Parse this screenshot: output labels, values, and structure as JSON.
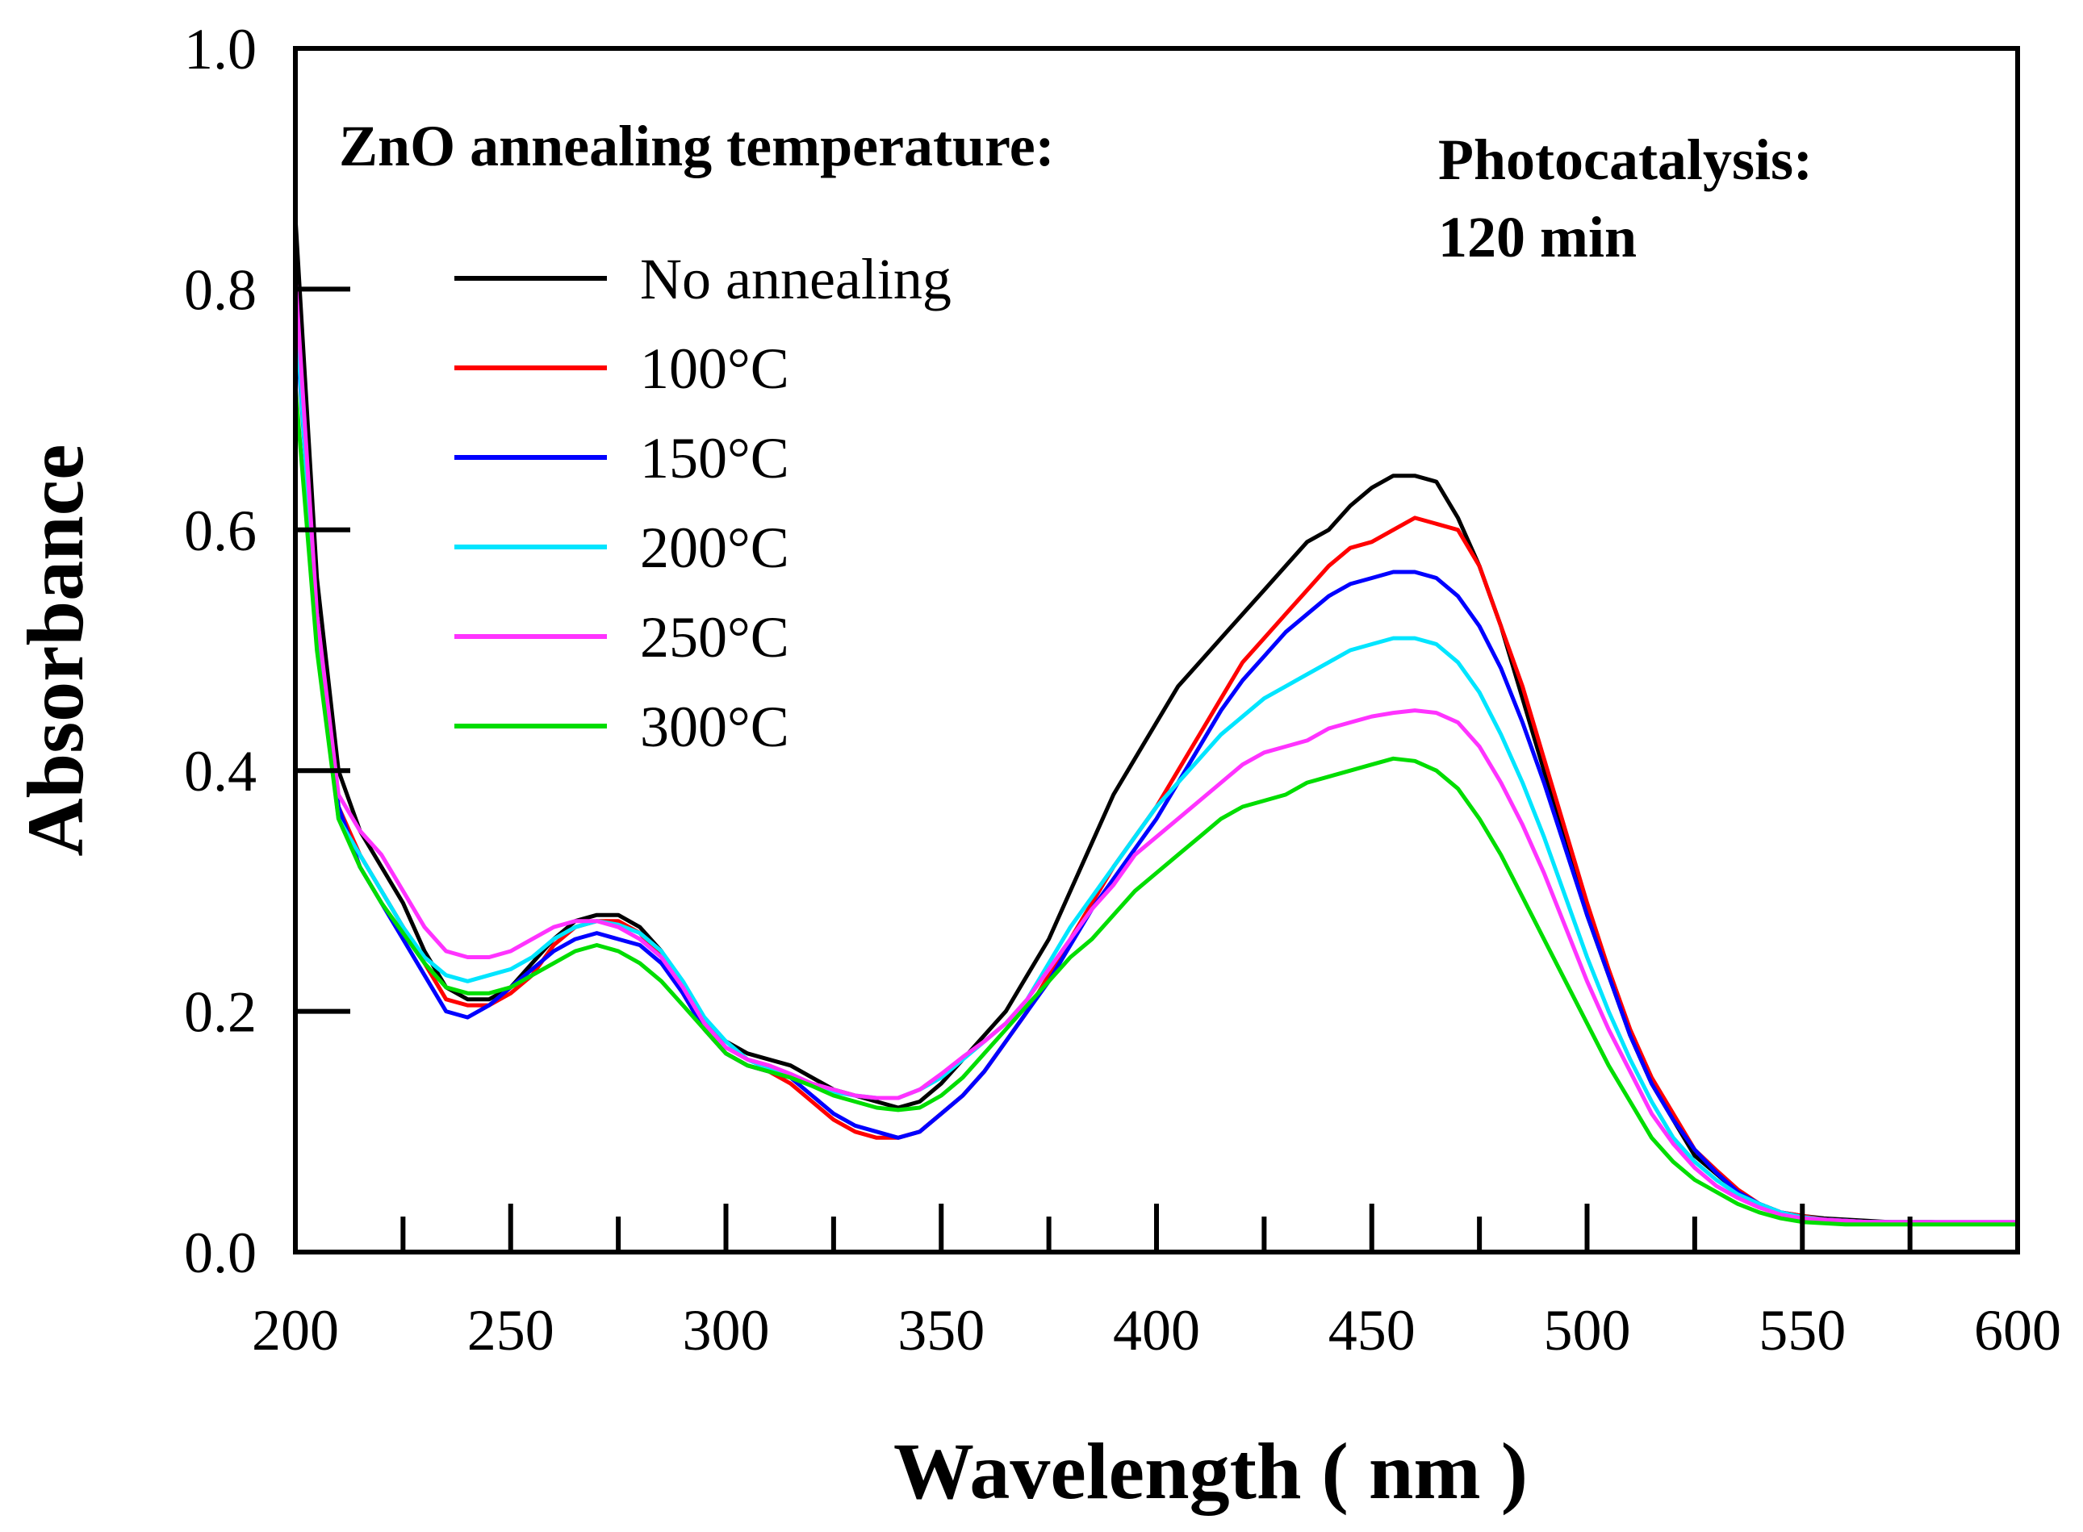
{
  "chart_data": {
    "type": "line",
    "title": "",
    "xlabel": "Wavelength ( nm )",
    "ylabel": "Absorbance",
    "xlim": [
      200,
      600
    ],
    "ylim": [
      0.0,
      1.0
    ],
    "x_ticks": [
      "200",
      "250",
      "300",
      "350",
      "400",
      "450",
      "500",
      "550",
      "600"
    ],
    "y_ticks": [
      "0.0",
      "0.2",
      "0.4",
      "0.6",
      "0.8",
      "1.0"
    ],
    "grid": false,
    "legend_title": "ZnO annealing temperature:",
    "legend_position": "top-left",
    "annotation_line1": "Photocatalysis:",
    "annotation_line2": "120 min",
    "x": [
      200,
      205,
      210,
      215,
      220,
      225,
      230,
      235,
      240,
      245,
      250,
      255,
      260,
      265,
      270,
      275,
      280,
      285,
      290,
      295,
      300,
      305,
      310,
      315,
      320,
      325,
      330,
      335,
      340,
      345,
      350,
      355,
      360,
      365,
      370,
      375,
      380,
      385,
      390,
      395,
      400,
      405,
      410,
      415,
      420,
      425,
      430,
      435,
      440,
      445,
      450,
      455,
      460,
      465,
      470,
      475,
      480,
      485,
      490,
      495,
      500,
      505,
      510,
      515,
      520,
      525,
      530,
      535,
      540,
      545,
      550,
      555,
      560,
      565,
      570,
      575,
      580,
      585,
      590,
      595,
      600
    ],
    "series": [
      {
        "name": "No annealing",
        "color": "#000000",
        "values": [
          0.86,
          0.56,
          0.4,
          0.35,
          0.32,
          0.29,
          0.25,
          0.22,
          0.21,
          0.21,
          0.22,
          0.24,
          0.26,
          0.275,
          0.28,
          0.28,
          0.27,
          0.25,
          0.22,
          0.19,
          0.175,
          0.165,
          0.16,
          0.155,
          0.145,
          0.135,
          0.13,
          0.125,
          0.12,
          0.125,
          0.14,
          0.16,
          0.18,
          0.2,
          0.23,
          0.26,
          0.3,
          0.34,
          0.38,
          0.41,
          0.44,
          0.47,
          0.49,
          0.51,
          0.53,
          0.55,
          0.57,
          0.59,
          0.6,
          0.62,
          0.635,
          0.645,
          0.645,
          0.64,
          0.61,
          0.57,
          0.52,
          0.46,
          0.4,
          0.34,
          0.28,
          0.23,
          0.18,
          0.14,
          0.11,
          0.08,
          0.065,
          0.05,
          0.04,
          0.033,
          0.03,
          0.028,
          0.027,
          0.026,
          0.025,
          0.025,
          0.025,
          0.024,
          0.024,
          0.024,
          0.024
        ]
      },
      {
        "name": "100°C",
        "color": "#ff0000",
        "values": [
          0.8,
          0.52,
          0.37,
          0.33,
          0.3,
          0.27,
          0.24,
          0.21,
          0.205,
          0.205,
          0.215,
          0.23,
          0.255,
          0.27,
          0.275,
          0.275,
          0.265,
          0.245,
          0.215,
          0.185,
          0.165,
          0.155,
          0.15,
          0.14,
          0.125,
          0.11,
          0.1,
          0.095,
          0.095,
          0.1,
          0.115,
          0.13,
          0.15,
          0.175,
          0.2,
          0.23,
          0.26,
          0.29,
          0.32,
          0.345,
          0.37,
          0.4,
          0.43,
          0.46,
          0.49,
          0.51,
          0.53,
          0.55,
          0.57,
          0.585,
          0.59,
          0.6,
          0.61,
          0.605,
          0.6,
          0.57,
          0.52,
          0.47,
          0.41,
          0.35,
          0.29,
          0.235,
          0.185,
          0.145,
          0.115,
          0.085,
          0.068,
          0.052,
          0.04,
          0.033,
          0.03,
          0.027,
          0.026,
          0.025,
          0.025,
          0.024,
          0.024,
          0.024,
          0.024,
          0.024,
          0.024
        ]
      },
      {
        "name": "150°C",
        "color": "#0000ff",
        "values": [
          0.78,
          0.52,
          0.37,
          0.32,
          0.29,
          0.26,
          0.23,
          0.2,
          0.195,
          0.205,
          0.22,
          0.235,
          0.25,
          0.26,
          0.265,
          0.26,
          0.255,
          0.24,
          0.215,
          0.185,
          0.165,
          0.155,
          0.15,
          0.145,
          0.13,
          0.115,
          0.105,
          0.1,
          0.095,
          0.1,
          0.115,
          0.13,
          0.15,
          0.175,
          0.2,
          0.225,
          0.255,
          0.285,
          0.31,
          0.335,
          0.36,
          0.39,
          0.42,
          0.45,
          0.475,
          0.495,
          0.515,
          0.53,
          0.545,
          0.555,
          0.56,
          0.565,
          0.565,
          0.56,
          0.545,
          0.52,
          0.485,
          0.44,
          0.39,
          0.335,
          0.28,
          0.23,
          0.18,
          0.14,
          0.11,
          0.085,
          0.066,
          0.05,
          0.04,
          0.033,
          0.029,
          0.027,
          0.026,
          0.025,
          0.025,
          0.024,
          0.024,
          0.024,
          0.024,
          0.024,
          0.024
        ]
      },
      {
        "name": "200°C",
        "color": "#00e5ff",
        "values": [
          0.79,
          0.51,
          0.36,
          0.33,
          0.3,
          0.27,
          0.245,
          0.23,
          0.225,
          0.23,
          0.235,
          0.245,
          0.26,
          0.27,
          0.275,
          0.272,
          0.265,
          0.25,
          0.225,
          0.195,
          0.175,
          0.16,
          0.152,
          0.145,
          0.138,
          0.133,
          0.13,
          0.128,
          0.128,
          0.135,
          0.145,
          0.16,
          0.175,
          0.19,
          0.21,
          0.24,
          0.27,
          0.295,
          0.32,
          0.345,
          0.37,
          0.39,
          0.41,
          0.43,
          0.445,
          0.46,
          0.47,
          0.48,
          0.49,
          0.5,
          0.505,
          0.51,
          0.51,
          0.505,
          0.49,
          0.465,
          0.43,
          0.39,
          0.345,
          0.295,
          0.245,
          0.2,
          0.16,
          0.125,
          0.095,
          0.075,
          0.06,
          0.048,
          0.04,
          0.033,
          0.029,
          0.027,
          0.026,
          0.025,
          0.025,
          0.025,
          0.025,
          0.025,
          0.025,
          0.025,
          0.025
        ]
      },
      {
        "name": "250°C",
        "color": "#ff33ff",
        "values": [
          0.81,
          0.53,
          0.38,
          0.35,
          0.33,
          0.3,
          0.27,
          0.25,
          0.245,
          0.245,
          0.25,
          0.26,
          0.27,
          0.275,
          0.275,
          0.27,
          0.26,
          0.245,
          0.22,
          0.19,
          0.17,
          0.16,
          0.155,
          0.148,
          0.14,
          0.135,
          0.13,
          0.128,
          0.128,
          0.135,
          0.148,
          0.162,
          0.175,
          0.19,
          0.21,
          0.235,
          0.26,
          0.285,
          0.305,
          0.33,
          0.345,
          0.36,
          0.375,
          0.39,
          0.405,
          0.415,
          0.42,
          0.425,
          0.435,
          0.44,
          0.445,
          0.448,
          0.45,
          0.448,
          0.44,
          0.42,
          0.39,
          0.355,
          0.315,
          0.27,
          0.225,
          0.185,
          0.15,
          0.115,
          0.09,
          0.07,
          0.055,
          0.045,
          0.037,
          0.031,
          0.028,
          0.027,
          0.026,
          0.025,
          0.025,
          0.025,
          0.025,
          0.025,
          0.025,
          0.025,
          0.025
        ]
      },
      {
        "name": "300°C",
        "color": "#00dd00",
        "values": [
          0.72,
          0.5,
          0.36,
          0.32,
          0.29,
          0.265,
          0.24,
          0.22,
          0.215,
          0.215,
          0.22,
          0.23,
          0.24,
          0.25,
          0.255,
          0.25,
          0.24,
          0.225,
          0.205,
          0.185,
          0.165,
          0.155,
          0.15,
          0.145,
          0.138,
          0.13,
          0.125,
          0.12,
          0.118,
          0.12,
          0.13,
          0.145,
          0.165,
          0.185,
          0.205,
          0.225,
          0.245,
          0.26,
          0.28,
          0.3,
          0.315,
          0.33,
          0.345,
          0.36,
          0.37,
          0.375,
          0.38,
          0.39,
          0.395,
          0.4,
          0.405,
          0.41,
          0.408,
          0.4,
          0.385,
          0.36,
          0.33,
          0.295,
          0.26,
          0.225,
          0.19,
          0.155,
          0.125,
          0.095,
          0.075,
          0.06,
          0.05,
          0.04,
          0.033,
          0.028,
          0.025,
          0.024,
          0.023,
          0.023,
          0.023,
          0.023,
          0.023,
          0.023,
          0.023,
          0.023,
          0.023
        ]
      }
    ]
  }
}
